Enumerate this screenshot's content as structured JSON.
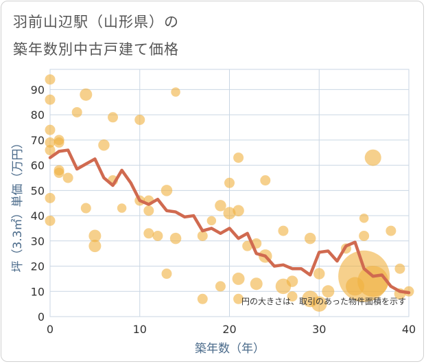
{
  "title_line1": "羽前山辺駅（山形県）の",
  "title_line2": "築年数別中古戸建て価格",
  "chart_data": {
    "type": "scatter",
    "title": "羽前山辺駅（山形県）の築年数別中古戸建て価格",
    "xlabel": "築年数（年）",
    "ylabel": "坪（3.3㎡）単価（万円）",
    "xlim": [
      0,
      40
    ],
    "ylim": [
      0,
      98
    ],
    "xticks": [
      0,
      10,
      20,
      30,
      40
    ],
    "yticks": [
      0,
      10,
      20,
      30,
      40,
      50,
      60,
      70,
      80,
      90
    ],
    "note": "円の大きさは、取引のあった物件面積を示す",
    "colors": {
      "points": "#f0b040",
      "line": "#d06a50",
      "grid": "#c9d6e3"
    },
    "points": [
      {
        "x": 0,
        "y": 94,
        "s": 1
      },
      {
        "x": 0,
        "y": 86,
        "s": 1
      },
      {
        "x": 0,
        "y": 74,
        "s": 1
      },
      {
        "x": 0,
        "y": 69,
        "s": 1
      },
      {
        "x": 0,
        "y": 66,
        "s": 1
      },
      {
        "x": 0,
        "y": 47,
        "s": 1
      },
      {
        "x": 0,
        "y": 38,
        "s": 1
      },
      {
        "x": 1,
        "y": 70,
        "s": 1
      },
      {
        "x": 1,
        "y": 69,
        "s": 1
      },
      {
        "x": 1,
        "y": 58,
        "s": 1
      },
      {
        "x": 1,
        "y": 57,
        "s": 1
      },
      {
        "x": 2,
        "y": 55,
        "s": 1
      },
      {
        "x": 3,
        "y": 81,
        "s": 1
      },
      {
        "x": 4,
        "y": 88,
        "s": 1.2
      },
      {
        "x": 4,
        "y": 43,
        "s": 1
      },
      {
        "x": 5,
        "y": 32,
        "s": 1.2
      },
      {
        "x": 5,
        "y": 28,
        "s": 1.2
      },
      {
        "x": 6,
        "y": 68,
        "s": 1.1
      },
      {
        "x": 7,
        "y": 79,
        "s": 1
      },
      {
        "x": 7,
        "y": 54,
        "s": 1
      },
      {
        "x": 8,
        "y": 43,
        "s": 0.9
      },
      {
        "x": 10,
        "y": 78,
        "s": 1
      },
      {
        "x": 10,
        "y": 46,
        "s": 1
      },
      {
        "x": 11,
        "y": 46,
        "s": 1
      },
      {
        "x": 11,
        "y": 42,
        "s": 1
      },
      {
        "x": 11,
        "y": 33,
        "s": 1
      },
      {
        "x": 12,
        "y": 32,
        "s": 1
      },
      {
        "x": 13,
        "y": 50,
        "s": 1.1
      },
      {
        "x": 13,
        "y": 17,
        "s": 1
      },
      {
        "x": 14,
        "y": 89,
        "s": 0.9
      },
      {
        "x": 14,
        "y": 31,
        "s": 1.1
      },
      {
        "x": 17,
        "y": 32,
        "s": 1
      },
      {
        "x": 17,
        "y": 7,
        "s": 1
      },
      {
        "x": 18,
        "y": 38,
        "s": 0.9
      },
      {
        "x": 19,
        "y": 44,
        "s": 1.1
      },
      {
        "x": 19,
        "y": 12,
        "s": 1
      },
      {
        "x": 20,
        "y": 53,
        "s": 1
      },
      {
        "x": 20,
        "y": 41,
        "s": 1.2
      },
      {
        "x": 21,
        "y": 63,
        "s": 1
      },
      {
        "x": 21,
        "y": 42,
        "s": 1.1
      },
      {
        "x": 21,
        "y": 15,
        "s": 1.2
      },
      {
        "x": 21,
        "y": 7,
        "s": 1
      },
      {
        "x": 22,
        "y": 28,
        "s": 1
      },
      {
        "x": 23,
        "y": 29,
        "s": 1
      },
      {
        "x": 23,
        "y": 13,
        "s": 1.2
      },
      {
        "x": 24,
        "y": 54,
        "s": 1
      },
      {
        "x": 24,
        "y": 24,
        "s": 1.3
      },
      {
        "x": 26,
        "y": 34,
        "s": 1
      },
      {
        "x": 26,
        "y": 12,
        "s": 1.5
      },
      {
        "x": 27,
        "y": 14,
        "s": 1.1
      },
      {
        "x": 27,
        "y": 8,
        "s": 1
      },
      {
        "x": 29,
        "y": 31,
        "s": 1.1
      },
      {
        "x": 29,
        "y": 7,
        "s": 1.6
      },
      {
        "x": 30,
        "y": 17,
        "s": 1.1
      },
      {
        "x": 30,
        "y": 5,
        "s": 1.5
      },
      {
        "x": 31,
        "y": 10,
        "s": 1.2
      },
      {
        "x": 33,
        "y": 27,
        "s": 1
      },
      {
        "x": 34,
        "y": 12,
        "s": 1.8
      },
      {
        "x": 35,
        "y": 39,
        "s": 0.9
      },
      {
        "x": 35,
        "y": 32,
        "s": 1
      },
      {
        "x": 35,
        "y": 16,
        "s": 5
      },
      {
        "x": 36,
        "y": 63,
        "s": 1.6
      },
      {
        "x": 36,
        "y": 14,
        "s": 3
      },
      {
        "x": 38,
        "y": 34,
        "s": 1
      },
      {
        "x": 39,
        "y": 19,
        "s": 1
      },
      {
        "x": 39,
        "y": 9,
        "s": 1.1
      },
      {
        "x": 40,
        "y": 10,
        "s": 1
      }
    ],
    "trend": {
      "x": [
        0,
        1,
        2,
        3,
        4,
        5,
        6,
        7,
        8,
        9,
        10,
        11,
        12,
        13,
        14,
        15,
        16,
        17,
        18,
        19,
        20,
        21,
        22,
        23,
        24,
        25,
        26,
        27,
        28,
        29,
        30,
        31,
        32,
        33,
        34,
        35,
        36,
        37,
        38,
        39,
        40
      ],
      "y": [
        63,
        65.5,
        66,
        58.5,
        60.5,
        62.5,
        55,
        52,
        58,
        53,
        46,
        44.5,
        46.5,
        42,
        41.5,
        39.5,
        40,
        34,
        35,
        33,
        35,
        31,
        33,
        25,
        24,
        20,
        20.5,
        19,
        19,
        16.5,
        25.5,
        26,
        22,
        28,
        29.5,
        19,
        16,
        16.5,
        12,
        10,
        9.5
      ]
    }
  }
}
